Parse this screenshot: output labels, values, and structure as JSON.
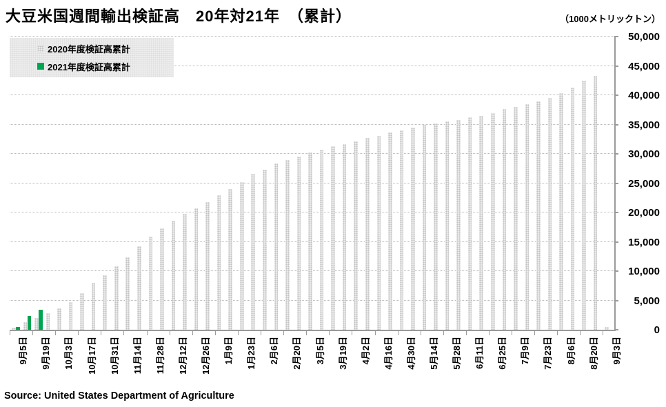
{
  "header": {
    "title": "大豆米国週間輸出検証高　20年対21年　（累計）",
    "unit_label": "（1000メトリックトン）"
  },
  "legend": {
    "items": [
      {
        "label": "2020年度検証高累計",
        "color": "#d9d9d9"
      },
      {
        "label": "2021年度検証高累計",
        "color": "#00a551"
      }
    ]
  },
  "footer": {
    "source": "Source: United States Department of Agriculture"
  },
  "chart_data": {
    "type": "bar",
    "title": "大豆米国週間輸出検証高　20年対21年（累計）",
    "unit": "1000メトリックトン",
    "ylim": [
      0,
      50000
    ],
    "y_tick_step": 5000,
    "grid": "dotted horizontal lines every 5,000; y-axis on right side",
    "legend_position": "top-left",
    "x_label_frequency": "every 2nd weekly bar",
    "x_labels": [
      "9月5日",
      "9月19日",
      "10月3日",
      "10月17日",
      "10月31日",
      "11月14日",
      "11月28日",
      "12月12日",
      "12月26日",
      "1月9日",
      "1月23日",
      "2月6日",
      "2月20日",
      "3月5日",
      "3月19日",
      "4月2日",
      "4月16日",
      "4月30日",
      "5月14日",
      "5月28日",
      "6月11日",
      "6月25日",
      "7月9日",
      "7月23日",
      "8月6日",
      "8月20日",
      "9月3日"
    ],
    "series": [
      {
        "name": "2020年度検証高累計",
        "color": "#d9d9d9",
        "values": [
          400,
          1300,
          2000,
          2800,
          3700,
          4700,
          6200,
          8000,
          9300,
          10800,
          12300,
          14200,
          15900,
          17300,
          18600,
          19800,
          20700,
          21800,
          22900,
          24000,
          25200,
          26600,
          27300,
          28300,
          29000,
          29500,
          30200,
          30700,
          31300,
          31700,
          32100,
          32700,
          33100,
          33600,
          34000,
          34500,
          34900,
          35200,
          35500,
          35800,
          36200,
          36500,
          36900,
          37600,
          38000,
          38500,
          38900,
          39500,
          40300,
          41300,
          42500,
          43300,
          500
        ]
      },
      {
        "name": "2021年度検証高累計",
        "color": "#00a551",
        "values": [
          500,
          2300,
          3400,
          0,
          0,
          0,
          0,
          0,
          0,
          0,
          0,
          0,
          0,
          0,
          0,
          0,
          0,
          0,
          0,
          0,
          0,
          0,
          0,
          0,
          0,
          0,
          0,
          0,
          0,
          0,
          0,
          0,
          0,
          0,
          0,
          0,
          0,
          0,
          0,
          0,
          0,
          0,
          0,
          0,
          0,
          0,
          0,
          0,
          0,
          0,
          0,
          0,
          0
        ]
      }
    ]
  }
}
